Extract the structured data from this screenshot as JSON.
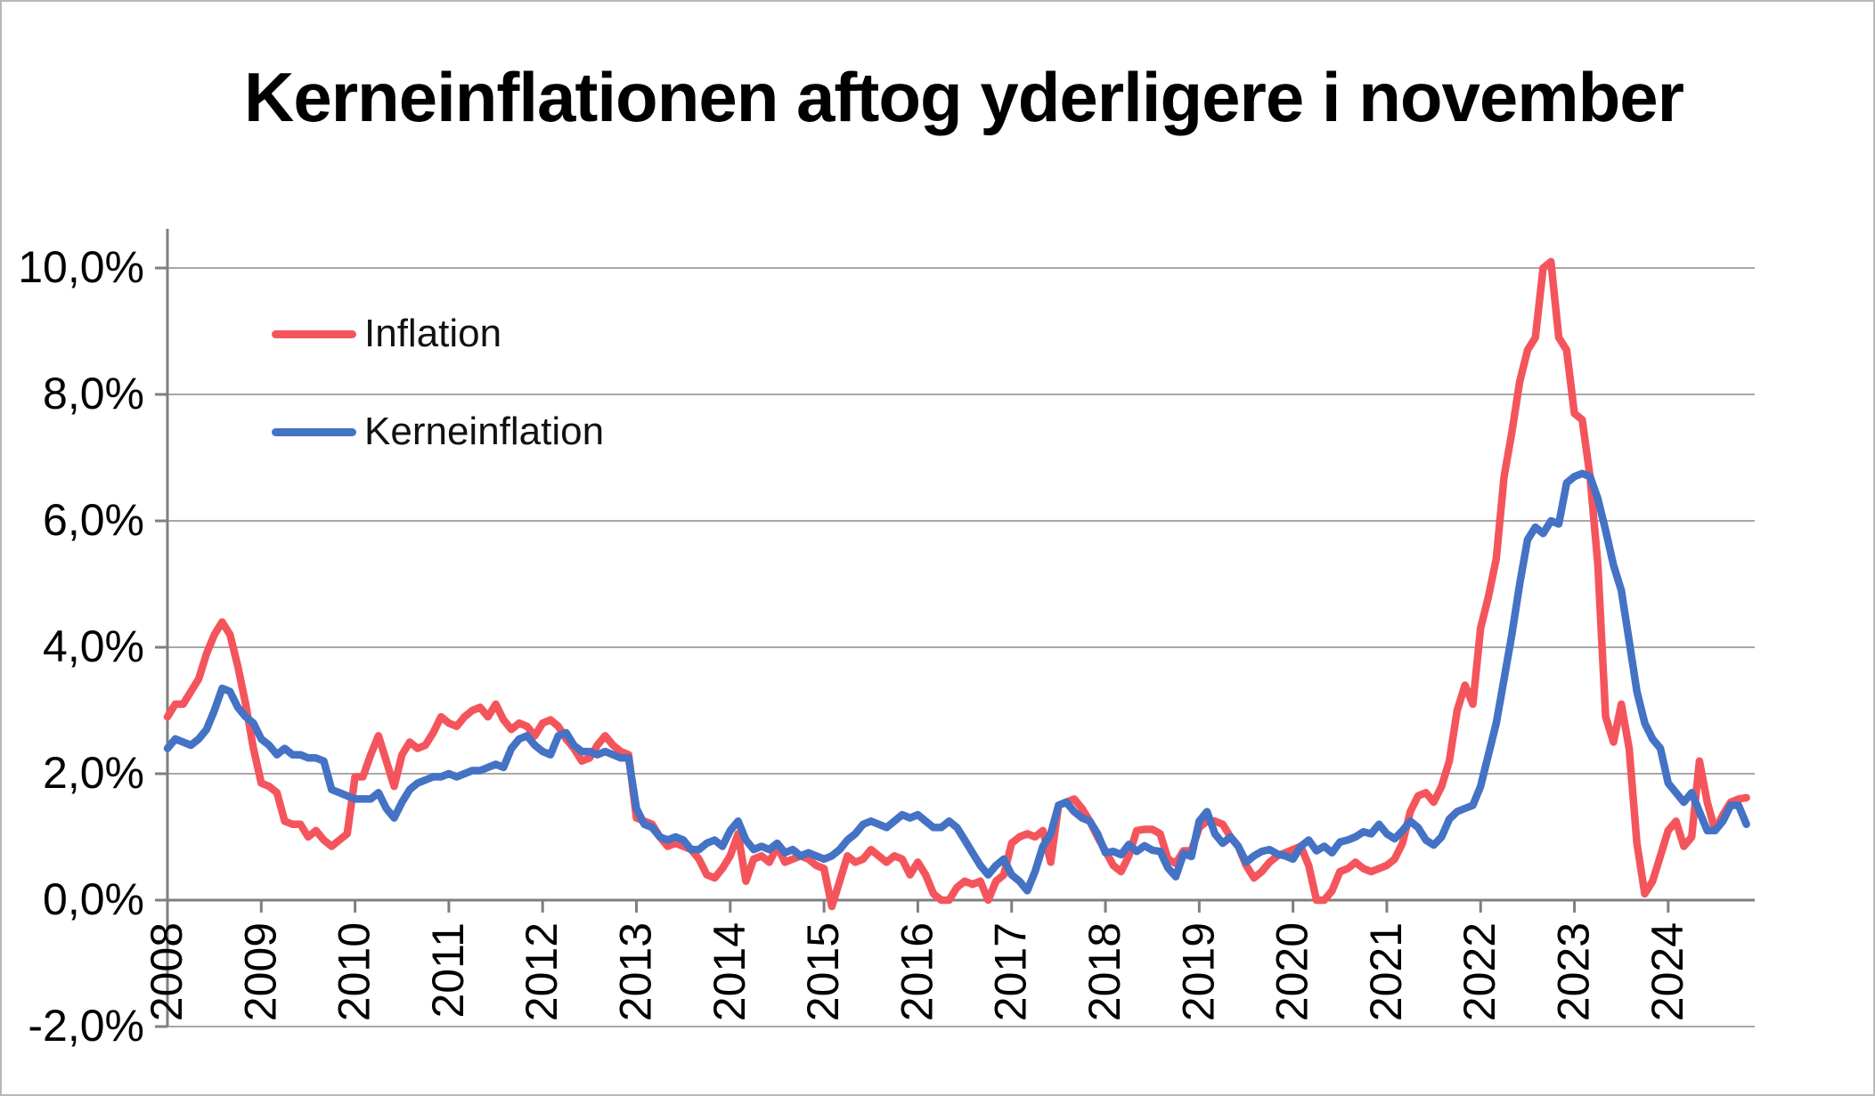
{
  "title": "Kerneinflationen aftog yderligere i november",
  "chart_data": {
    "type": "line",
    "title": "Kerneinflationen aftog yderligere i november",
    "frequency": "monthly",
    "x_start": "2008-01",
    "x_end": "2024-11",
    "grid": true,
    "legend_position": "top-left",
    "ylim": [
      -2.0,
      10.6
    ],
    "y_axis": {
      "tick_labels": [
        "10,0%",
        "8,0%",
        "6,0%",
        "4,0%",
        "2,0%",
        "0,0%",
        "-2,0%"
      ],
      "tick_values": [
        10,
        8,
        6,
        4,
        2,
        0,
        -2
      ]
    },
    "x_axis": {
      "tick_labels": [
        "2008",
        "2009",
        "2010",
        "2011",
        "2012",
        "2013",
        "2014",
        "2015",
        "2016",
        "2017",
        "2018",
        "2019",
        "2020",
        "2021",
        "2022",
        "2023",
        "2024"
      ]
    },
    "series": [
      {
        "name": "Inflation",
        "color": "#f4555c",
        "values": [
          2.9,
          3.1,
          3.1,
          3.3,
          3.5,
          3.9,
          4.2,
          4.4,
          4.2,
          3.7,
          3.1,
          2.4,
          1.85,
          1.8,
          1.7,
          1.25,
          1.2,
          1.2,
          1.0,
          1.1,
          0.95,
          0.85,
          0.95,
          1.05,
          1.95,
          1.95,
          2.3,
          2.6,
          2.2,
          1.8,
          2.3,
          2.5,
          2.4,
          2.45,
          2.65,
          2.9,
          2.8,
          2.75,
          2.9,
          3.0,
          3.05,
          2.9,
          3.1,
          2.85,
          2.7,
          2.8,
          2.75,
          2.6,
          2.8,
          2.85,
          2.75,
          2.55,
          2.4,
          2.2,
          2.25,
          2.45,
          2.6,
          2.45,
          2.35,
          2.3,
          1.3,
          1.25,
          1.2,
          1.0,
          0.85,
          0.9,
          0.85,
          0.8,
          0.65,
          0.4,
          0.35,
          0.5,
          0.7,
          1.05,
          0.3,
          0.65,
          0.7,
          0.6,
          0.85,
          0.6,
          0.65,
          0.7,
          0.65,
          0.55,
          0.5,
          -0.1,
          0.3,
          0.7,
          0.6,
          0.65,
          0.8,
          0.7,
          0.6,
          0.7,
          0.65,
          0.4,
          0.6,
          0.4,
          0.1,
          0.0,
          0.0,
          0.2,
          0.3,
          0.25,
          0.3,
          0.0,
          0.3,
          0.4,
          0.9,
          1.0,
          1.05,
          1.0,
          1.1,
          0.6,
          1.5,
          1.55,
          1.6,
          1.45,
          1.25,
          1.0,
          0.78,
          0.55,
          0.45,
          0.7,
          1.1,
          1.12,
          1.12,
          1.05,
          0.65,
          0.58,
          0.78,
          0.78,
          1.15,
          1.25,
          1.25,
          1.2,
          1.0,
          0.85,
          0.55,
          0.35,
          0.45,
          0.6,
          0.7,
          0.75,
          0.8,
          0.85,
          0.55,
          0.0,
          0.0,
          0.15,
          0.45,
          0.5,
          0.6,
          0.5,
          0.45,
          0.5,
          0.55,
          0.65,
          0.9,
          1.4,
          1.65,
          1.7,
          1.55,
          1.8,
          2.2,
          3.0,
          3.4,
          3.1,
          4.3,
          4.8,
          5.4,
          6.7,
          7.4,
          8.2,
          8.7,
          8.9,
          10.0,
          10.1,
          8.9,
          8.7,
          7.7,
          7.6,
          6.7,
          5.3,
          2.9,
          2.5,
          3.1,
          2.4,
          0.9,
          0.1,
          0.3,
          0.7,
          1.1,
          1.25,
          0.85,
          1.0,
          2.2,
          1.55,
          1.1,
          1.35,
          1.55,
          1.6,
          1.62
        ]
      },
      {
        "name": "Kerneinflation",
        "color": "#4472c4",
        "values": [
          2.4,
          2.55,
          2.5,
          2.45,
          2.55,
          2.7,
          3.0,
          3.35,
          3.3,
          3.05,
          2.9,
          2.8,
          2.55,
          2.45,
          2.3,
          2.4,
          2.3,
          2.3,
          2.25,
          2.25,
          2.2,
          1.75,
          1.7,
          1.65,
          1.6,
          1.6,
          1.6,
          1.7,
          1.45,
          1.3,
          1.55,
          1.75,
          1.85,
          1.9,
          1.95,
          1.95,
          2.0,
          1.95,
          2.0,
          2.05,
          2.05,
          2.1,
          2.15,
          2.1,
          2.4,
          2.55,
          2.6,
          2.45,
          2.35,
          2.3,
          2.6,
          2.65,
          2.45,
          2.35,
          2.35,
          2.3,
          2.35,
          2.3,
          2.25,
          2.25,
          1.45,
          1.2,
          1.15,
          1.0,
          0.95,
          1.0,
          0.95,
          0.8,
          0.8,
          0.9,
          0.95,
          0.85,
          1.1,
          1.25,
          0.95,
          0.8,
          0.85,
          0.8,
          0.9,
          0.75,
          0.8,
          0.7,
          0.75,
          0.7,
          0.65,
          0.7,
          0.8,
          0.95,
          1.05,
          1.2,
          1.25,
          1.2,
          1.15,
          1.25,
          1.35,
          1.3,
          1.35,
          1.25,
          1.15,
          1.15,
          1.25,
          1.15,
          0.95,
          0.75,
          0.55,
          0.4,
          0.55,
          0.65,
          0.4,
          0.3,
          0.15,
          0.45,
          0.85,
          1.05,
          1.5,
          1.55,
          1.4,
          1.3,
          1.25,
          1.05,
          0.75,
          0.77,
          0.72,
          0.88,
          0.77,
          0.86,
          0.79,
          0.77,
          0.51,
          0.37,
          0.74,
          0.69,
          1.25,
          1.4,
          1.05,
          0.9,
          1.0,
          0.85,
          0.6,
          0.7,
          0.77,
          0.8,
          0.73,
          0.7,
          0.65,
          0.85,
          0.95,
          0.78,
          0.85,
          0.75,
          0.92,
          0.95,
          1.0,
          1.08,
          1.05,
          1.2,
          1.05,
          0.97,
          1.1,
          1.25,
          1.15,
          0.95,
          0.87,
          1.0,
          1.28,
          1.4,
          1.45,
          1.5,
          1.8,
          2.3,
          2.8,
          3.5,
          4.2,
          5.0,
          5.7,
          5.9,
          5.8,
          6.0,
          5.95,
          6.6,
          6.7,
          6.75,
          6.7,
          6.35,
          5.85,
          5.3,
          4.9,
          4.1,
          3.3,
          2.8,
          2.55,
          2.4,
          1.85,
          1.7,
          1.55,
          1.7,
          1.4,
          1.1,
          1.1,
          1.25,
          1.5,
          1.5,
          1.2
        ]
      }
    ]
  }
}
